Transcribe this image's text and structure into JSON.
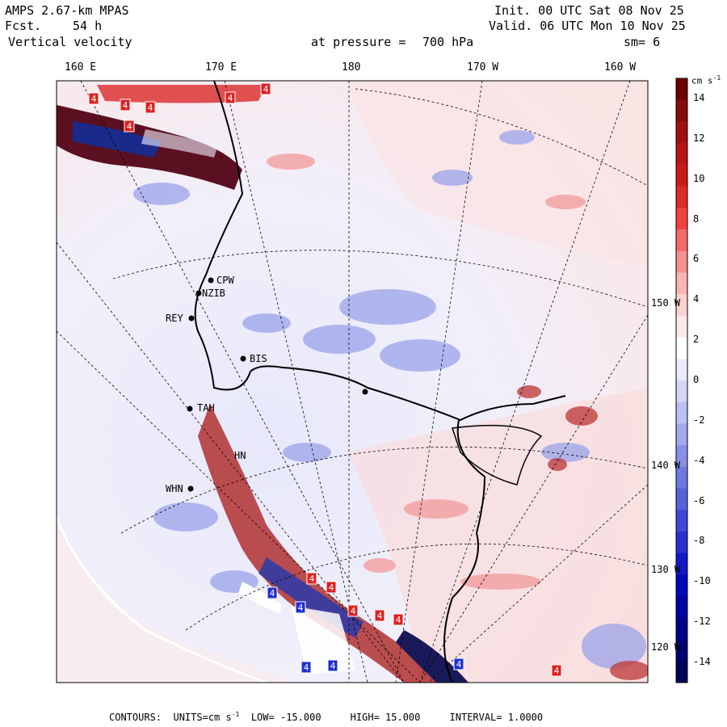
{
  "header": {
    "model": "AMPS 2.67-km MPAS",
    "fcst_label": "Fcst.",
    "fcst_value": "54 h",
    "field": "Vertical velocity",
    "init": "Init. 00 UTC Sat 08 Nov 25",
    "valid": "Valid. 06 UTC Mon 10 Nov 25",
    "pressure_label": "at pressure =",
    "pressure_value": "700 hPa",
    "smooth": "sm= 6"
  },
  "longitude_labels": [
    "160 E",
    "170 E",
    "180",
    "170 W",
    "160 W"
  ],
  "latitude_labels": [
    "150 W",
    "140 W",
    "130 W",
    "120 W"
  ],
  "colorbar": {
    "units": "cm s",
    "units_exp": "-1",
    "ticks": [
      "14",
      "12",
      "10",
      "8",
      "6",
      "4",
      "2",
      "0",
      "-2",
      "-4",
      "-6",
      "-8",
      "-10",
      "-12",
      "-14"
    ],
    "colors": [
      "#6e0000",
      "#8a0a0a",
      "#a01010",
      "#b81414",
      "#cc1a1a",
      "#e02a2a",
      "#f04040",
      "#f56a6a",
      "#f89090",
      "#fab4b4",
      "#fcd2d2",
      "#fde8e8",
      "#ffffff",
      "#ebebfb",
      "#d4d6f8",
      "#bcc0f4",
      "#a3a8ef",
      "#8a90ea",
      "#7078e4",
      "#5860de",
      "#4048d8",
      "#2830d0",
      "#1018c8",
      "#0008b8",
      "#0000a0",
      "#00008a",
      "#000070",
      "#000055"
    ]
  },
  "stations": [
    "CPW",
    "NZIB",
    "REY",
    "BIS",
    "TAH",
    "HN",
    "WHN"
  ],
  "footer": {
    "contours": "CONTOURS:",
    "units_label": "UNITS=cm s",
    "units_exp": "-1",
    "low_label": "LOW=",
    "low": "-15.000",
    "high_label": "HIGH=",
    "high": "15.000",
    "interval_label": "INTERVAL=",
    "interval": "1.0000"
  },
  "extrema_label": "4"
}
